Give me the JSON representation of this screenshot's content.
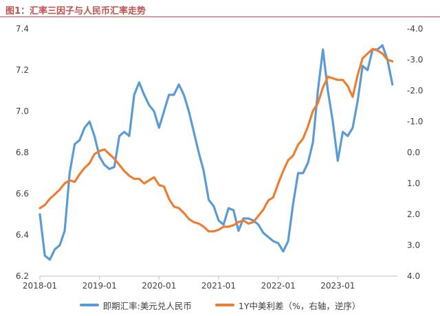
{
  "chart_data": {
    "type": "line",
    "title": "图1：汇率三因子与人民币汇率走势",
    "x_ticks": [
      "2018-01",
      "2019-01",
      "2020-01",
      "2021-01",
      "2022-01",
      "2023-01"
    ],
    "x_range": [
      "2018-01",
      "2023-12"
    ],
    "y_left": {
      "ticks": [
        "6.2",
        "6.4",
        "6.6",
        "6.8",
        "7.0",
        "7.2",
        "7.4"
      ],
      "range": [
        6.2,
        7.4
      ]
    },
    "y_right": {
      "ticks": [
        "-4.0",
        "-3.0",
        "-2.0",
        "-1.0",
        "0.0",
        "1.0",
        "2.0",
        "3.0",
        "4.0"
      ],
      "range": [
        -4.0,
        4.0
      ],
      "inverted": true
    },
    "grid": false,
    "legend_position": "bottom",
    "series": [
      {
        "name": "即期汇率:美元兑人民币",
        "axis": "left",
        "color": "#5b9bd5",
        "points": [
          [
            "2018-01",
            6.5
          ],
          [
            "2018-02",
            6.3
          ],
          [
            "2018-03",
            6.28
          ],
          [
            "2018-04",
            6.33
          ],
          [
            "2018-05",
            6.35
          ],
          [
            "2018-06",
            6.42
          ],
          [
            "2018-07",
            6.7
          ],
          [
            "2018-08",
            6.84
          ],
          [
            "2018-09",
            6.86
          ],
          [
            "2018-10",
            6.92
          ],
          [
            "2018-11",
            6.95
          ],
          [
            "2018-12",
            6.88
          ],
          [
            "2019-01",
            6.78
          ],
          [
            "2019-02",
            6.74
          ],
          [
            "2019-03",
            6.72
          ],
          [
            "2019-04",
            6.73
          ],
          [
            "2019-05",
            6.88
          ],
          [
            "2019-06",
            6.9
          ],
          [
            "2019-07",
            6.88
          ],
          [
            "2019-08",
            7.08
          ],
          [
            "2019-09",
            7.14
          ],
          [
            "2019-10",
            7.08
          ],
          [
            "2019-11",
            7.03
          ],
          [
            "2019-12",
            7.0
          ],
          [
            "2020-01",
            6.92
          ],
          [
            "2020-02",
            7.0
          ],
          [
            "2020-03",
            7.08
          ],
          [
            "2020-04",
            7.08
          ],
          [
            "2020-05",
            7.13
          ],
          [
            "2020-06",
            7.08
          ],
          [
            "2020-07",
            7.0
          ],
          [
            "2020-08",
            6.9
          ],
          [
            "2020-09",
            6.8
          ],
          [
            "2020-10",
            6.71
          ],
          [
            "2020-11",
            6.57
          ],
          [
            "2020-12",
            6.54
          ],
          [
            "2021-01",
            6.47
          ],
          [
            "2021-02",
            6.45
          ],
          [
            "2021-03",
            6.53
          ],
          [
            "2021-04",
            6.52
          ],
          [
            "2021-05",
            6.42
          ],
          [
            "2021-06",
            6.48
          ],
          [
            "2021-07",
            6.48
          ],
          [
            "2021-08",
            6.47
          ],
          [
            "2021-09",
            6.45
          ],
          [
            "2021-10",
            6.41
          ],
          [
            "2021-11",
            6.39
          ],
          [
            "2021-12",
            6.37
          ],
          [
            "2022-01",
            6.36
          ],
          [
            "2022-02",
            6.32
          ],
          [
            "2022-03",
            6.37
          ],
          [
            "2022-04",
            6.55
          ],
          [
            "2022-05",
            6.7
          ],
          [
            "2022-06",
            6.7
          ],
          [
            "2022-07",
            6.75
          ],
          [
            "2022-08",
            6.85
          ],
          [
            "2022-09",
            7.1
          ],
          [
            "2022-10",
            7.3
          ],
          [
            "2022-11",
            7.1
          ],
          [
            "2022-12",
            6.95
          ],
          [
            "2023-01",
            6.76
          ],
          [
            "2023-02",
            6.9
          ],
          [
            "2023-03",
            6.88
          ],
          [
            "2023-04",
            6.92
          ],
          [
            "2023-05",
            7.05
          ],
          [
            "2023-06",
            7.22
          ],
          [
            "2023-07",
            7.2
          ],
          [
            "2023-08",
            7.3
          ],
          [
            "2023-09",
            7.3
          ],
          [
            "2023-10",
            7.32
          ],
          [
            "2023-11",
            7.25
          ],
          [
            "2023-12",
            7.13
          ]
        ]
      },
      {
        "name": "1Y中美利差（%，右轴，逆序）",
        "axis": "right",
        "color": "#ed7d31",
        "points": [
          [
            "2018-01",
            1.8
          ],
          [
            "2018-02",
            1.7
          ],
          [
            "2018-03",
            1.5
          ],
          [
            "2018-04",
            1.35
          ],
          [
            "2018-05",
            1.2
          ],
          [
            "2018-06",
            1.0
          ],
          [
            "2018-07",
            0.9
          ],
          [
            "2018-08",
            0.95
          ],
          [
            "2018-09",
            0.7
          ],
          [
            "2018-10",
            0.5
          ],
          [
            "2018-11",
            0.35
          ],
          [
            "2018-12",
            0.05
          ],
          [
            "2019-01",
            -0.05
          ],
          [
            "2019-02",
            -0.1
          ],
          [
            "2019-03",
            0.05
          ],
          [
            "2019-04",
            0.2
          ],
          [
            "2019-05",
            0.4
          ],
          [
            "2019-06",
            0.6
          ],
          [
            "2019-07",
            0.75
          ],
          [
            "2019-08",
            0.85
          ],
          [
            "2019-09",
            0.85
          ],
          [
            "2019-10",
            1.0
          ],
          [
            "2019-11",
            0.9
          ],
          [
            "2019-12",
            0.8
          ],
          [
            "2020-01",
            1.05
          ],
          [
            "2020-02",
            1.1
          ],
          [
            "2020-03",
            1.5
          ],
          [
            "2020-04",
            1.75
          ],
          [
            "2020-05",
            1.8
          ],
          [
            "2020-06",
            1.95
          ],
          [
            "2020-07",
            2.15
          ],
          [
            "2020-08",
            2.25
          ],
          [
            "2020-09",
            2.3
          ],
          [
            "2020-10",
            2.4
          ],
          [
            "2020-11",
            2.55
          ],
          [
            "2020-12",
            2.55
          ],
          [
            "2021-01",
            2.5
          ],
          [
            "2021-02",
            2.4
          ],
          [
            "2021-03",
            2.4
          ],
          [
            "2021-04",
            2.35
          ],
          [
            "2021-05",
            2.25
          ],
          [
            "2021-06",
            2.2
          ],
          [
            "2021-07",
            2.3
          ],
          [
            "2021-08",
            2.25
          ],
          [
            "2021-09",
            2.05
          ],
          [
            "2021-10",
            1.85
          ],
          [
            "2021-11",
            1.55
          ],
          [
            "2021-12",
            1.45
          ],
          [
            "2022-01",
            1.0
          ],
          [
            "2022-02",
            0.6
          ],
          [
            "2022-03",
            0.25
          ],
          [
            "2022-04",
            0.1
          ],
          [
            "2022-05",
            -0.25
          ],
          [
            "2022-06",
            -0.45
          ],
          [
            "2022-07",
            -0.85
          ],
          [
            "2022-08",
            -1.35
          ],
          [
            "2022-09",
            -1.6
          ],
          [
            "2022-10",
            -2.1
          ],
          [
            "2022-11",
            -2.45
          ],
          [
            "2022-12",
            -2.4
          ],
          [
            "2023-01",
            -2.35
          ],
          [
            "2023-02",
            -2.35
          ],
          [
            "2023-03",
            -2.15
          ],
          [
            "2023-04",
            -1.8
          ],
          [
            "2023-05",
            -2.5
          ],
          [
            "2023-06",
            -3.05
          ],
          [
            "2023-07",
            -3.2
          ],
          [
            "2023-08",
            -3.35
          ],
          [
            "2023-09",
            -3.3
          ],
          [
            "2023-10",
            -3.2
          ],
          [
            "2023-11",
            -3.0
          ],
          [
            "2023-12",
            -2.95
          ]
        ]
      }
    ]
  }
}
